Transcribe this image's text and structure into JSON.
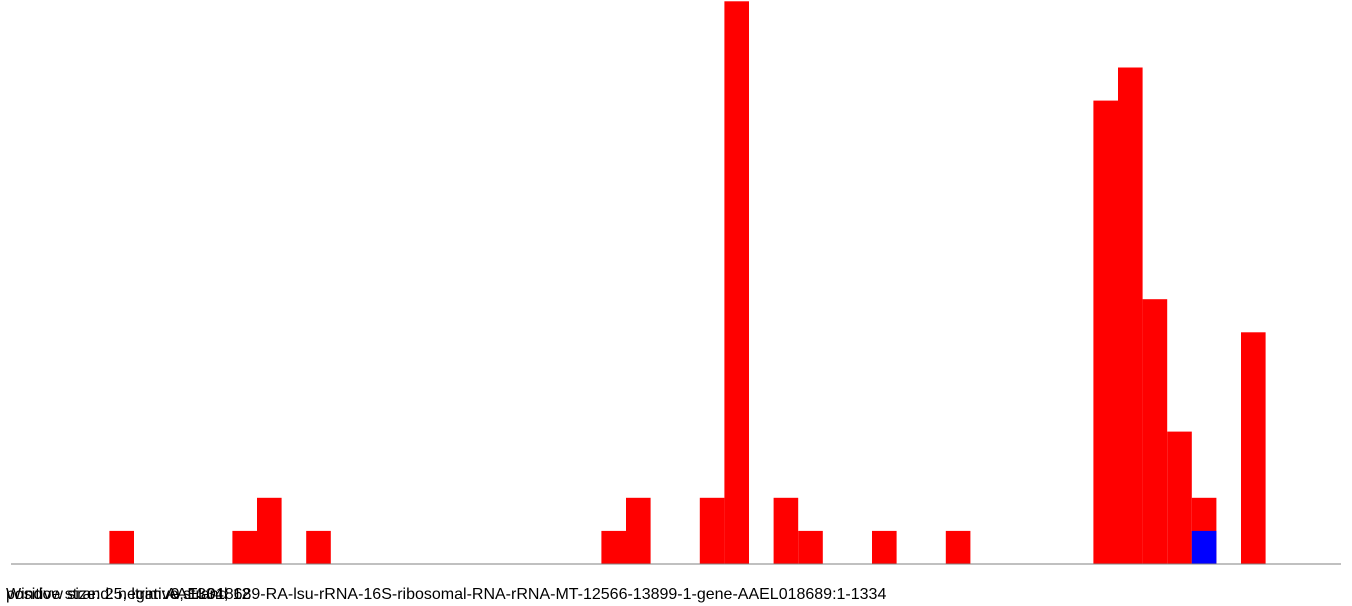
{
  "chart_data": {
    "type": "bar",
    "x_range": [
      0,
      1334
    ],
    "bin_width": 25,
    "series": [
      {
        "values": [
          0,
          0,
          0,
          0,
          1,
          0,
          0,
          0,
          0,
          1,
          2,
          0,
          1,
          0,
          0,
          0,
          0,
          0,
          0,
          0,
          0,
          0,
          0,
          0,
          1,
          2,
          0,
          0,
          2,
          17,
          0,
          2,
          1,
          0,
          0,
          1,
          0,
          0,
          1,
          0,
          0,
          0,
          0,
          0,
          14,
          15,
          8,
          4,
          2,
          0,
          7,
          0,
          0,
          0
        ],
        "color": "#ff0000"
      },
      {
        "values": [
          0,
          0,
          0,
          0,
          0,
          0,
          0,
          0,
          0,
          0,
          0,
          0,
          0,
          0,
          0,
          0,
          0,
          0,
          0,
          0,
          0,
          0,
          0,
          0,
          0,
          0,
          0,
          0,
          0,
          0,
          0,
          0,
          0,
          0,
          0,
          0,
          0,
          0,
          0,
          0,
          0,
          0,
          0,
          0,
          0,
          0,
          0,
          0,
          1,
          0,
          0,
          0,
          0,
          0
        ],
        "color": "#0000ff"
      }
    ],
    "axis_color": "#808080",
    "background": "#ffffff"
  },
  "labels": {
    "overlap_1": "Window size: 25, ltrim: 0, 1334, 12",
    "overlap_2": "positive strand: negative strand",
    "overlap_3": "AAEL018689-RA-lsu-rRNA-16S-ribosomal-RNA-rRNA-MT-12566-13899-1-gene-AAEL018689:1-1334"
  }
}
